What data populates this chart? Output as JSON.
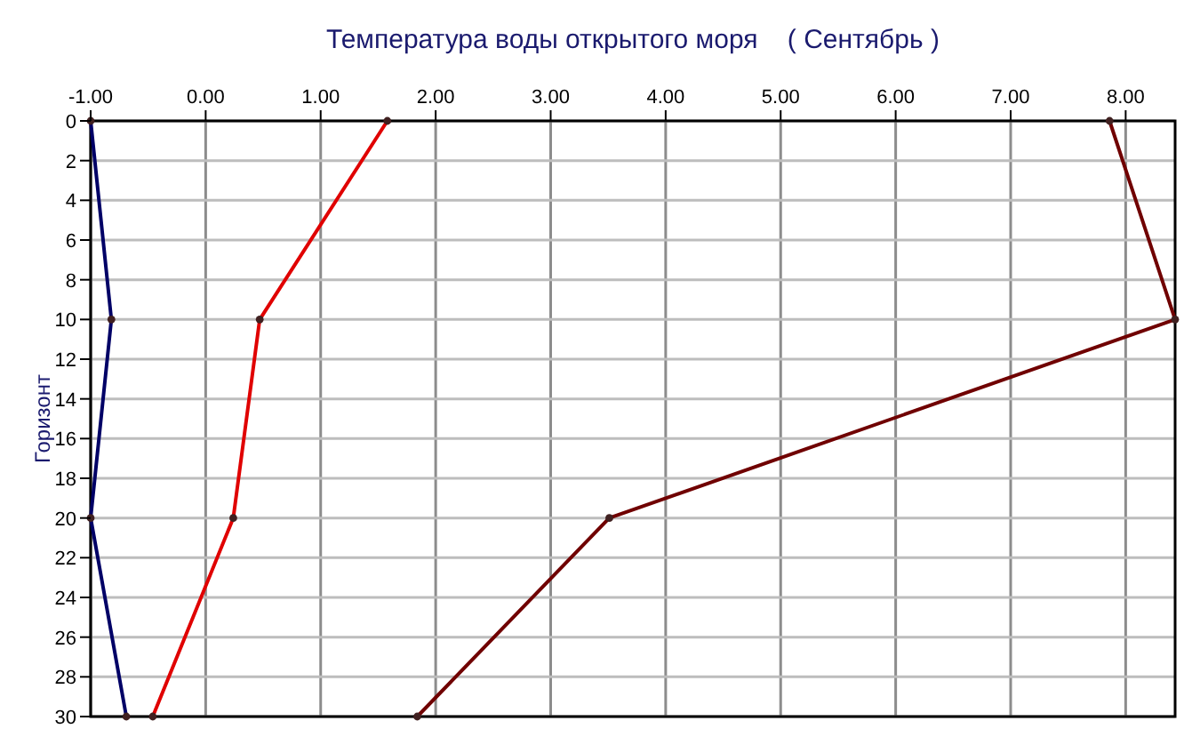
{
  "chart_data": {
    "type": "line",
    "title": "Температура воды открытого моря    ( Сентябрь )",
    "ylabel": "Горизонт",
    "xlim": [
      -1,
      8.43
    ],
    "ylim": [
      30,
      0
    ],
    "xticks": [
      {
        "value": -1,
        "label": "-1.00"
      },
      {
        "value": 0,
        "label": "0.00"
      },
      {
        "value": 1,
        "label": "1.00"
      },
      {
        "value": 2,
        "label": "2.00"
      },
      {
        "value": 3,
        "label": "3.00"
      },
      {
        "value": 4,
        "label": "4.00"
      },
      {
        "value": 5,
        "label": "5.00"
      },
      {
        "value": 6,
        "label": "6.00"
      },
      {
        "value": 7,
        "label": "7.00"
      },
      {
        "value": 8,
        "label": "8.00"
      }
    ],
    "yticks": [
      0,
      2,
      4,
      6,
      8,
      10,
      12,
      14,
      16,
      18,
      20,
      22,
      24,
      26,
      28,
      30
    ],
    "grid": true,
    "marker": "circle",
    "line_style": "solid",
    "series": [
      {
        "color": "#000066",
        "x": [
          -1.0,
          -0.82,
          -1.0,
          -0.69
        ],
        "values": [
          0,
          10,
          20,
          30
        ]
      },
      {
        "color": "#e00000",
        "x": [
          1.58,
          0.47,
          0.24,
          -0.46
        ],
        "values": [
          0,
          10,
          20,
          30
        ]
      },
      {
        "color": "#700000",
        "x": [
          7.86,
          8.43,
          3.51,
          1.84
        ],
        "values": [
          0,
          10,
          20,
          30
        ]
      }
    ]
  }
}
